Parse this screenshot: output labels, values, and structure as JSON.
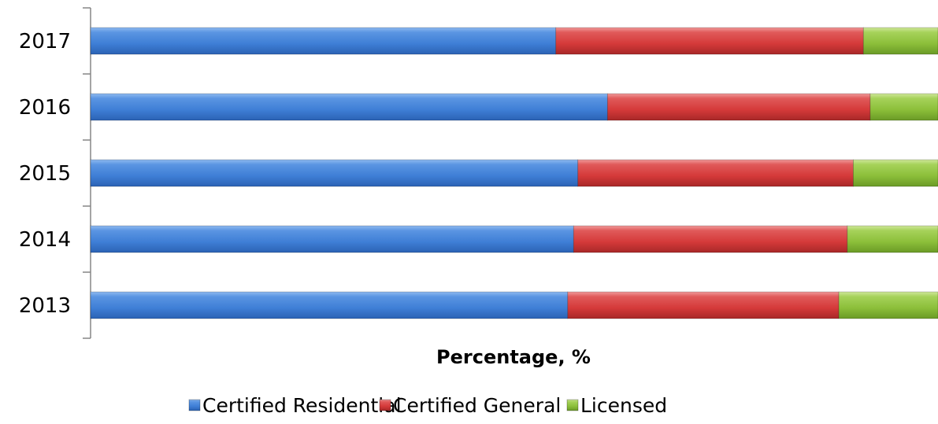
{
  "chart_data": {
    "type": "bar",
    "orientation": "horizontal",
    "stacked": "percent",
    "categories": [
      "2013",
      "2014",
      "2015",
      "2016",
      "2017"
    ],
    "series": [
      {
        "name": "Certified Residential",
        "color": "#3f7fd6",
        "values": [
          56.3,
          57.0,
          57.5,
          61.0,
          54.9
        ]
      },
      {
        "name": "Certified General",
        "color": "#d53a3a",
        "values": [
          32.0,
          32.3,
          32.5,
          31.0,
          36.3
        ]
      },
      {
        "name": "Licensed",
        "color": "#8cbf3a",
        "values": [
          11.7,
          10.7,
          10.0,
          8.0,
          8.8
        ]
      }
    ],
    "title": "",
    "xlabel": "Percentage, %",
    "ylabel": "",
    "xlim": [
      0,
      100
    ],
    "grid": false,
    "legend": "bottom"
  }
}
